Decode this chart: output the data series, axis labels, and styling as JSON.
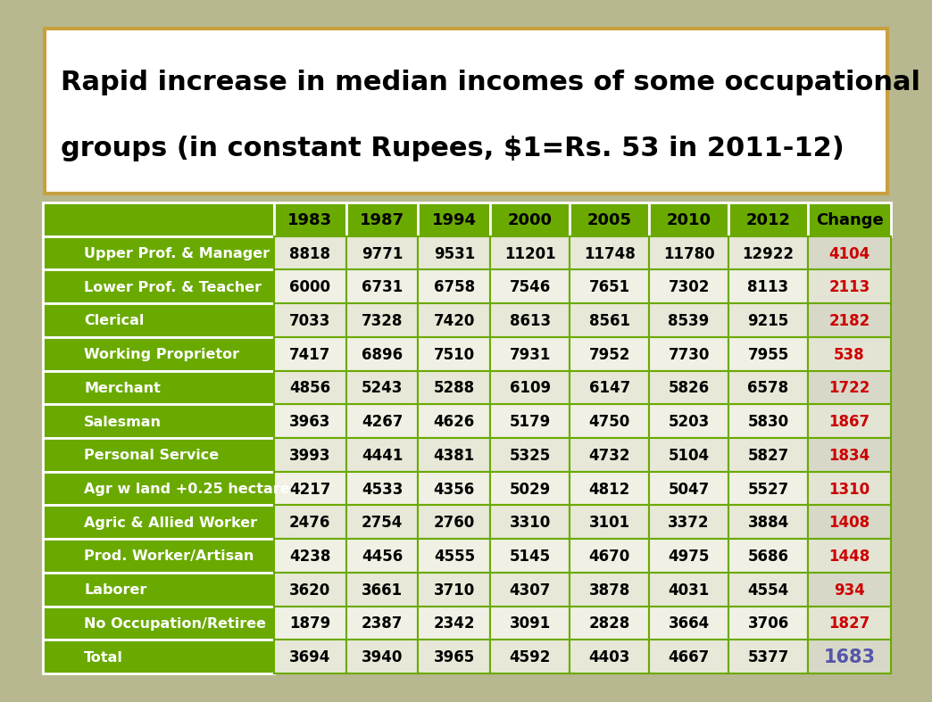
{
  "title_line1": "Rapid increase in median incomes of some occupational",
  "title_line2": "groups (in constant Rupees, $1=Rs. 53 in 2011-12)",
  "col_headers": [
    "1983",
    "1987",
    "1994",
    "2000",
    "2005",
    "2010",
    "2012",
    "Change"
  ],
  "rows": [
    {
      "label": "Upper Prof. & Manager",
      "values": [
        8818,
        9771,
        9531,
        11201,
        11748,
        11780,
        12922
      ],
      "change": 4104,
      "is_total": false
    },
    {
      "label": "Lower Prof. & Teacher",
      "values": [
        6000,
        6731,
        6758,
        7546,
        7651,
        7302,
        8113
      ],
      "change": 2113,
      "is_total": false
    },
    {
      "label": "Clerical",
      "values": [
        7033,
        7328,
        7420,
        8613,
        8561,
        8539,
        9215
      ],
      "change": 2182,
      "is_total": false
    },
    {
      "label": "Working Proprietor",
      "values": [
        7417,
        6896,
        7510,
        7931,
        7952,
        7730,
        7955
      ],
      "change": 538,
      "is_total": false
    },
    {
      "label": "Merchant",
      "values": [
        4856,
        5243,
        5288,
        6109,
        6147,
        5826,
        6578
      ],
      "change": 1722,
      "is_total": false
    },
    {
      "label": "Salesman",
      "values": [
        3963,
        4267,
        4626,
        5179,
        4750,
        5203,
        5830
      ],
      "change": 1867,
      "is_total": false
    },
    {
      "label": "Personal Service",
      "values": [
        3993,
        4441,
        4381,
        5325,
        4732,
        5104,
        5827
      ],
      "change": 1834,
      "is_total": false
    },
    {
      "label": "Agr w land +0.25 hectare",
      "values": [
        4217,
        4533,
        4356,
        5029,
        4812,
        5047,
        5527
      ],
      "change": 1310,
      "is_total": false
    },
    {
      "label": "Agric & Allied Worker",
      "values": [
        2476,
        2754,
        2760,
        3310,
        3101,
        3372,
        3884
      ],
      "change": 1408,
      "is_total": false
    },
    {
      "label": "Prod. Worker/Artisan",
      "values": [
        4238,
        4456,
        4555,
        5145,
        4670,
        4975,
        5686
      ],
      "change": 1448,
      "is_total": false
    },
    {
      "label": "Laborer",
      "values": [
        3620,
        3661,
        3710,
        4307,
        3878,
        4031,
        4554
      ],
      "change": 934,
      "is_total": false
    },
    {
      "label": "No Occupation/Retiree",
      "values": [
        1879,
        2387,
        2342,
        3091,
        2828,
        3664,
        3706
      ],
      "change": 1827,
      "is_total": false
    },
    {
      "label": "Total",
      "values": [
        3694,
        3940,
        3965,
        4592,
        4403,
        4667,
        5377
      ],
      "change": 1683,
      "is_total": true
    }
  ],
  "header_bg": "#6aaa00",
  "label_bg": "#6aaa00",
  "data_bg_even": "#e8e8d8",
  "data_bg_odd": "#f0f0e4",
  "change_bg_even": "#d8d8c8",
  "change_bg_odd": "#e4e4d4",
  "total_change_color": "#5555aa",
  "change_color": "#cc0000",
  "label_fg": "#ffffff",
  "data_fg": "#000000",
  "header_fg": "#000000",
  "bg_color": "#b8b890",
  "title_box_bg": "#ffffff",
  "title_box_border": "#c8a040",
  "green_border": "#6aaa00",
  "white_border": "#ffffff"
}
